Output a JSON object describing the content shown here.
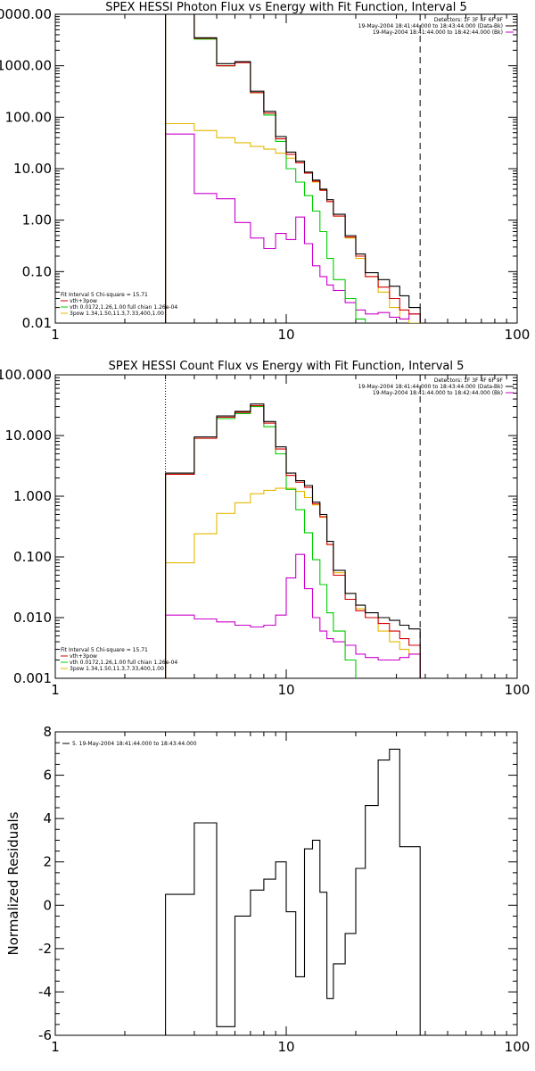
{
  "chart_data": [
    {
      "type": "line",
      "title": "SPEX HESSI Photon Flux vs Energy with Fit Function, Interval 5",
      "xlabel": "",
      "ylabel": "",
      "xscale": "log",
      "yscale": "log",
      "xlim": [
        1,
        100
      ],
      "ylim": [
        0.01,
        10000
      ],
      "x_ticks": [
        1,
        10,
        100
      ],
      "x_tick_labels": [
        "1",
        "10",
        "100"
      ],
      "y_ticks": [
        0.01,
        0.1,
        1,
        10,
        100,
        1000,
        10000
      ],
      "y_tick_labels": [
        "0.01",
        "0.10",
        "1.00",
        "10.00",
        "100.00",
        "1000.00",
        "10000.00"
      ],
      "vlines": [
        {
          "x": 3,
          "style": "dotted",
          "color": "#000000"
        },
        {
          "x": 38,
          "style": "dashed",
          "color": "#000000"
        }
      ],
      "legend_top": [
        "Detectors: 1F 3F 4F 6F 9F",
        "19-May-2004 18:41:44.000 to 18:43:44.000 (Data-Bk)",
        "19-May-2004 18:41:44.000 to 18:42:44.000 (Bk)"
      ],
      "legend_top_colors": [
        "",
        "#000000",
        "#cc00cc"
      ],
      "legend_bottom": [
        "Fit Interval 5   Chi-square = 15.71",
        "vth+3pow",
        "vth 0.0172,1.26,1.00  full chian 1.26e-04",
        "3pow 1.34,1.50,11.3,7.33,400,1.00"
      ],
      "legend_bottom_colors": [
        "",
        "#d40000",
        "#00cc00",
        "#e6b800"
      ],
      "edges": [
        3,
        4,
        5,
        6,
        7,
        8,
        9,
        10,
        11,
        12,
        13,
        14,
        15,
        16,
        18,
        20,
        22,
        25,
        28,
        31,
        34,
        38
      ],
      "series": [
        {
          "name": "19-May-2004 18:41:44.000 to 18:43:44.000 (Data-Bk)",
          "color": "#000000",
          "values": [
            10000,
            3500,
            1100,
            1200,
            320,
            130,
            42,
            21,
            14,
            8.6,
            6,
            4,
            2.5,
            1.3,
            0.5,
            0.22,
            0.095,
            0.07,
            0.052,
            0.034,
            0.02
          ]
        },
        {
          "name": "vth+3pow",
          "color": "#d40000",
          "values": [
            10000,
            3400,
            1000,
            1150,
            300,
            120,
            38,
            19,
            13,
            8.2,
            5.7,
            3.8,
            2.3,
            1.2,
            0.47,
            0.2,
            0.08,
            0.05,
            0.03,
            0.018,
            0.015
          ]
        },
        {
          "name": "vth 0.0172,1.26,1.00  full chian 1.26e-04",
          "color": "#00cc00",
          "values": [
            10000,
            3300,
            1000,
            1200,
            300,
            110,
            34,
            10,
            5.5,
            3,
            1.5,
            0.6,
            0.18,
            0.07,
            0.03,
            0.012,
            0.008
          ]
        },
        {
          "name": "3pow 1.34,1.50,11.3,7.33,400,1.00",
          "color": "#e6b800",
          "values": [
            75,
            55,
            40,
            32,
            27,
            24,
            20,
            16,
            13,
            8.5,
            5.5,
            3.8,
            2.3,
            1.2,
            0.45,
            0.18,
            0.08,
            0.04,
            0.02,
            0.012,
            0.01
          ]
        },
        {
          "name": "19-May-2004 18:41:44.000 to 18:42:44.000 (Bk)",
          "color": "#cc00cc",
          "values": [
            47,
            3.3,
            2.6,
            0.9,
            0.45,
            0.28,
            0.55,
            0.42,
            1.15,
            0.35,
            0.13,
            0.08,
            0.055,
            0.043,
            0.025,
            0.018,
            0.015,
            0.016,
            0.013,
            0.012,
            0.015
          ]
        }
      ]
    },
    {
      "type": "line",
      "title": "SPEX HESSI Count Flux vs Energy with Fit Function, Interval 5",
      "xlabel": "",
      "ylabel": "",
      "xscale": "log",
      "yscale": "log",
      "xlim": [
        1,
        100
      ],
      "ylim": [
        0.001,
        100
      ],
      "x_ticks": [
        1,
        10,
        100
      ],
      "x_tick_labels": [
        "1",
        "10",
        "100"
      ],
      "y_ticks": [
        0.001,
        0.01,
        0.1,
        1,
        10,
        100
      ],
      "y_tick_labels": [
        "0.001",
        "0.010",
        "0.100",
        "1.000",
        "10.000",
        "100.000"
      ],
      "vlines": [
        {
          "x": 3,
          "style": "dotted",
          "color": "#000000"
        },
        {
          "x": 38,
          "style": "dashed",
          "color": "#000000"
        }
      ],
      "legend_top": [
        "Detectors: 1F 3F 4F 6F 9F",
        "19-May-2004 18:41:44.000 to 18:43:44.000 (Data-Bk)",
        "19-May-2004 18:41:44.000 to 18:42:44.000 (Bk)"
      ],
      "legend_top_colors": [
        "",
        "#000000",
        "#cc00cc"
      ],
      "legend_bottom": [
        "Fit Interval 5   Chi-square = 15.71",
        "vth+3pow",
        "vth 0.0172,1.26,1.00  full chian 1.26e-04",
        "3pow 1.34,1.50,11.3,7.33,400,1.00"
      ],
      "legend_bottom_colors": [
        "",
        "#d40000",
        "#00cc00",
        "#e6b800"
      ],
      "edges": [
        3,
        4,
        5,
        6,
        7,
        8,
        9,
        10,
        11,
        12,
        13,
        14,
        15,
        16,
        18,
        20,
        22,
        25,
        28,
        31,
        34,
        38
      ],
      "series": [
        {
          "name": "19-May-2004 18:41:44.000 to 18:43:44.000 (Data-Bk)",
          "color": "#000000",
          "values": [
            2.4,
            9.5,
            21,
            25,
            33,
            17,
            6.5,
            2.4,
            1.8,
            1.5,
            0.8,
            0.5,
            0.18,
            0.06,
            0.025,
            0.016,
            0.012,
            0.01,
            0.009,
            0.0075,
            0.0065
          ]
        },
        {
          "name": "vth+3pow",
          "color": "#d40000",
          "values": [
            2.3,
            9.0,
            20,
            24,
            31,
            16,
            6.0,
            2.2,
            1.7,
            1.4,
            0.75,
            0.46,
            0.16,
            0.05,
            0.02,
            0.013,
            0.01,
            0.008,
            0.006,
            0.0045,
            0.0035
          ]
        },
        {
          "name": "vth 0.0172,1.26,1.00  full chian 1.26e-04",
          "color": "#00cc00",
          "values": [
            2.3,
            9.0,
            19,
            23,
            30,
            14,
            5.0,
            1.3,
            0.6,
            0.25,
            0.09,
            0.035,
            0.012,
            0.006,
            0.002,
            0.0007
          ]
        },
        {
          "name": "3pow 1.34,1.50,11.3,7.33,400,1.00",
          "color": "#e6b800",
          "values": [
            0.08,
            0.24,
            0.52,
            0.78,
            1.1,
            1.25,
            1.35,
            1.35,
            1.2,
            0.95,
            0.72,
            0.45,
            0.16,
            0.055,
            0.025,
            0.014,
            0.01,
            0.006,
            0.004,
            0.003,
            0.0025
          ]
        },
        {
          "name": "19-May-2004 18:41:44.000 to 18:42:44.000 (Bk)",
          "color": "#cc00cc",
          "values": [
            0.011,
            0.0095,
            0.0085,
            0.0075,
            0.007,
            0.0075,
            0.011,
            0.045,
            0.11,
            0.03,
            0.01,
            0.006,
            0.0045,
            0.004,
            0.0035,
            0.0025,
            0.0022,
            0.002,
            0.002,
            0.0022,
            0.0025
          ]
        }
      ]
    },
    {
      "type": "line",
      "title": "",
      "xlabel": "",
      "ylabel": "Normalized Residuals",
      "xscale": "log",
      "yscale": "linear",
      "xlim": [
        1,
        100
      ],
      "ylim": [
        -6,
        8
      ],
      "x_ticks": [
        1,
        10,
        100
      ],
      "x_tick_labels": [
        "1",
        "10",
        "100"
      ],
      "y_ticks": [
        -6,
        -4,
        -2,
        0,
        2,
        4,
        6,
        8
      ],
      "y_tick_labels": [
        "-6",
        "-4",
        "-2",
        "0",
        "2",
        "4",
        "6",
        "8"
      ],
      "legend_top": [
        "5. 19-May-2004 18:41:44.000 to 18:43:44.000"
      ],
      "legend_top_colors": [
        "#000000"
      ],
      "edges": [
        3,
        4,
        5,
        6,
        7,
        8,
        9,
        10,
        11,
        12,
        13,
        14,
        15,
        16,
        18,
        20,
        22,
        25,
        28,
        31,
        34,
        38
      ],
      "series": [
        {
          "name": "5. 19-May-2004 18:41:44.000 to 18:43:44.000",
          "color": "#000000",
          "values": [
            0.5,
            3.8,
            -5.6,
            -0.5,
            0.7,
            1.2,
            2.0,
            -0.3,
            -3.3,
            2.6,
            3.0,
            0.6,
            -4.3,
            -2.7,
            -1.3,
            1.7,
            4.6,
            6.7,
            7.2,
            2.7,
            2.7
          ]
        }
      ]
    }
  ]
}
